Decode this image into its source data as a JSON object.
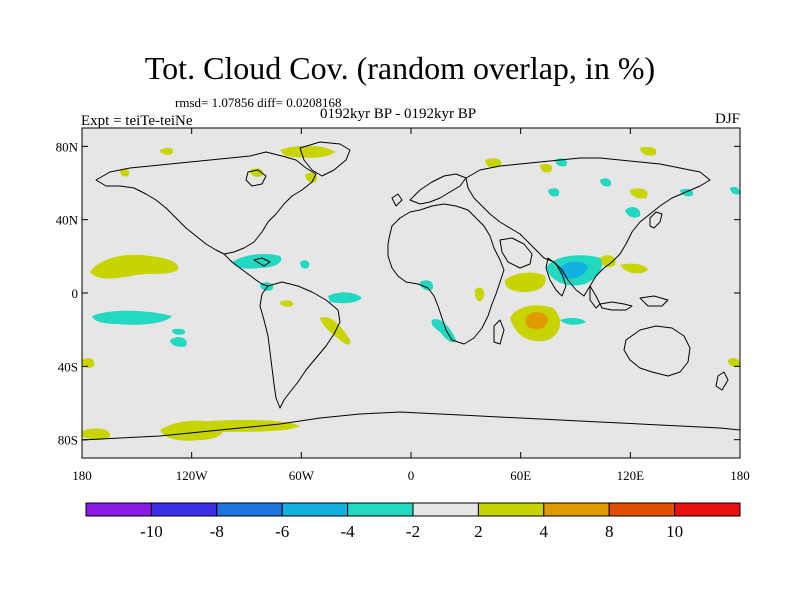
{
  "header": {
    "title": "Tot. Cloud Cov. (random overlap, in %)",
    "stats": "rmsd= 1.07856 diff= 0.0208168",
    "period": "0192kyr BP - 0192kyr BP",
    "experiment": "Expt = teiTe-teiNe",
    "season": "DJF"
  },
  "axes": {
    "lon_ticks": [
      {
        "value": -180,
        "label": "180"
      },
      {
        "value": -120,
        "label": "120W"
      },
      {
        "value": -60,
        "label": "60W"
      },
      {
        "value": 0,
        "label": "0"
      },
      {
        "value": 60,
        "label": "60E"
      },
      {
        "value": 120,
        "label": "120E"
      },
      {
        "value": 180,
        "label": "180"
      }
    ],
    "lat_ticks": [
      {
        "value": 80,
        "label": "80N"
      },
      {
        "value": 40,
        "label": "40N"
      },
      {
        "value": 0,
        "label": "0"
      },
      {
        "value": -40,
        "label": "40S"
      },
      {
        "value": -80,
        "label": "80S"
      }
    ],
    "lon_range": [
      -180,
      180
    ],
    "lat_range": [
      -90,
      90
    ]
  },
  "colorbar": {
    "labels": [
      "-10",
      "-8",
      "-6",
      "-4",
      "-2",
      "2",
      "4",
      "8",
      "10"
    ],
    "colors": [
      "#8a1be6",
      "#3a2ee6",
      "#1f74e0",
      "#14b1e0",
      "#22d8c0",
      "#e6e6e6",
      "#c8d400",
      "#e09a00",
      "#e05000",
      "#e81010"
    ]
  },
  "map_colors": {
    "background": "#e6e6e6",
    "coast": "#000000"
  }
}
